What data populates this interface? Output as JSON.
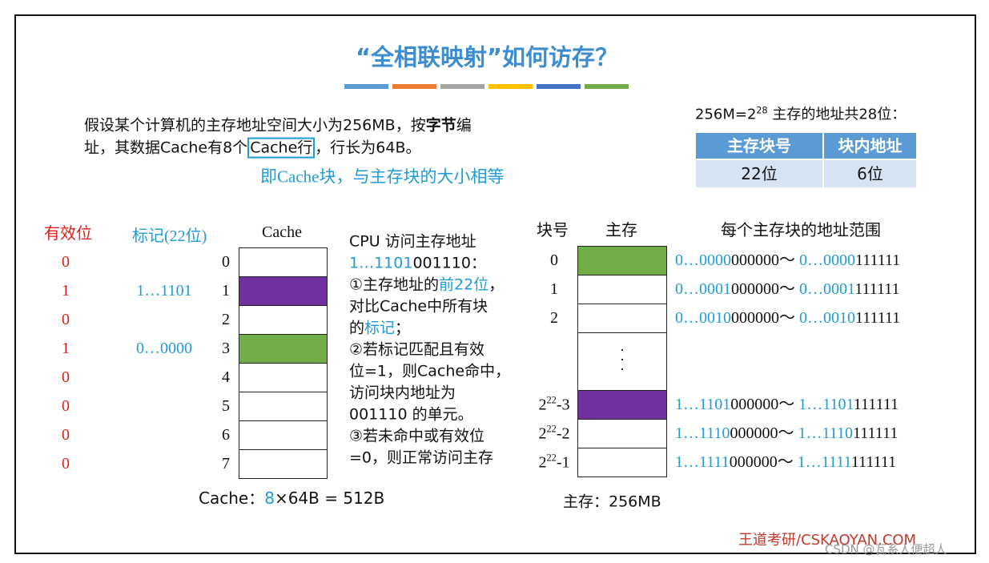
{
  "title": "“全相联映射”如何访存？",
  "intro": [
    [
      "假设某个计算机的主存地址空间大小为256MB，按",
      {
        "text": "字节",
        "style": "bold"
      },
      "编"
    ],
    [
      "址，其数据Cache有8个",
      {
        "text": "Cache行",
        "style": "boxed"
      },
      "，行长为64B。"
    ]
  ],
  "note": "即Cache块，与主存块的大小相等",
  "address_info": [
    "256M=2",
    {
      "text": "28",
      "style": "sup"
    },
    " 主存的地址共28位："
  ],
  "address_table": {
    "header": [
      "主存块号",
      "块内地址"
    ],
    "row": [
      "22位",
      "6位"
    ]
  },
  "cache": {
    "valid_header": "有效位",
    "tag_header": "标记(22位)",
    "title": "Cache",
    "rows": [
      {
        "index": "0",
        "valid": "0"
      },
      {
        "index": "1",
        "valid": "1",
        "tag": "1…1101",
        "fill": "#7030a0"
      },
      {
        "index": "2",
        "valid": "0"
      },
      {
        "index": "3",
        "valid": "1",
        "tag": "0…0000",
        "fill": "#70ad47"
      },
      {
        "index": "4",
        "valid": "0"
      },
      {
        "index": "5",
        "valid": "0"
      },
      {
        "index": "6",
        "valid": "0"
      },
      {
        "index": "7",
        "valid": "0"
      }
    ],
    "caption": [
      "Cache：",
      {
        "text": "8",
        "style": "blue"
      },
      "×64B = 512B"
    ]
  },
  "cpu_text": [
    [
      "CPU 访问主存地址"
    ],
    [
      {
        "text": "1…1101",
        "style": "blue"
      },
      "001110："
    ],
    [
      "①主存地址的",
      {
        "text": "前22位",
        "style": "blue"
      },
      "，"
    ],
    [
      "对比Cache中所有块"
    ],
    [
      "的",
      {
        "text": "标记",
        "style": "blue"
      },
      "；"
    ],
    [
      "②若标记匹配且有效"
    ],
    [
      "位=1，则Cache命中，"
    ],
    [
      "访问块内地址为"
    ],
    [
      "001110 的单元。"
    ],
    [
      "③若未命中或有效位"
    ],
    [
      "=0，则正常访问主存"
    ]
  ],
  "memory": {
    "block_header": "块号",
    "title": "主存",
    "range_header": "每个主存块的地址范围",
    "rows": [
      {
        "block": [
          "0"
        ],
        "fill": "#70ad47",
        "range": [
          {
            "text": "0…0000",
            "style": "blue"
          },
          "000000",
          "～ ",
          {
            "text": "0…0000",
            "style": "blue"
          },
          "111111"
        ]
      },
      {
        "block": [
          "1"
        ],
        "range": [
          {
            "text": "0…0001",
            "style": "blue"
          },
          "000000",
          "～ ",
          {
            "text": "0…0001",
            "style": "blue"
          },
          "111111"
        ]
      },
      {
        "block": [
          "2"
        ],
        "range": [
          {
            "text": "0…0010",
            "style": "blue"
          },
          "000000",
          "～ ",
          {
            "text": "0…0010",
            "style": "blue"
          },
          "111111"
        ]
      },
      {
        "block": [
          "2",
          {
            "text": "22",
            "style": "sup"
          },
          "-3"
        ],
        "fill": "#7030a0",
        "range": [
          {
            "text": "1…1101",
            "style": "blue"
          },
          "000000",
          "～ ",
          {
            "text": "1…1101",
            "style": "blue"
          },
          "111111"
        ]
      },
      {
        "block": [
          "2",
          {
            "text": "22",
            "style": "sup"
          },
          "-2"
        ],
        "range": [
          {
            "text": "1…1110",
            "style": "blue"
          },
          "000000",
          "～ ",
          {
            "text": "1…1110",
            "style": "blue"
          },
          "111111"
        ]
      },
      {
        "block": [
          "2",
          {
            "text": "22",
            "style": "sup"
          },
          "-1"
        ],
        "range": [
          {
            "text": "1…1111",
            "style": "blue"
          },
          "000000",
          "～ ",
          {
            "text": "1…1111",
            "style": "blue"
          },
          "111111"
        ]
      }
    ],
    "caption": "主存：256MB"
  },
  "footer": "王道考研/CSKAOYAN.COM",
  "watermark": "CSDN @瓦系人便超人"
}
